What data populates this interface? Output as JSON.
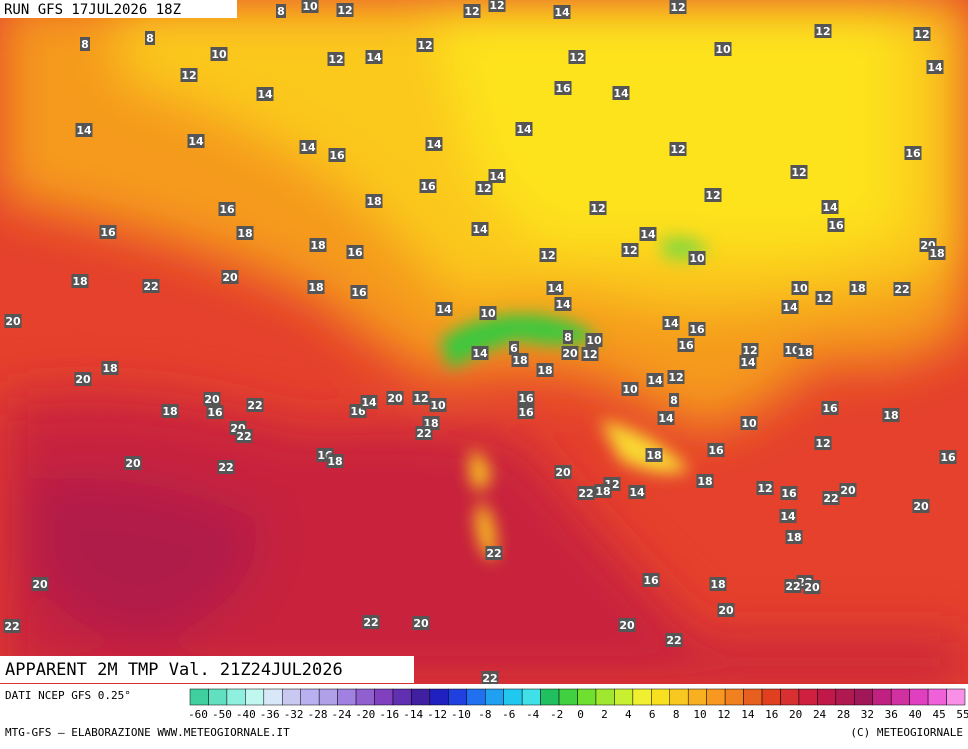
{
  "header": {
    "run": "RUN GFS 17JUL2026 18Z",
    "title": "APPARENT 2M TMP Val. 21Z24JUL2026"
  },
  "legend": {
    "source": "DATI NCEP GFS 0.25°",
    "ticks": [
      -60,
      -50,
      -40,
      -36,
      -32,
      -28,
      -24,
      -20,
      -16,
      -14,
      -12,
      -10,
      -8,
      -6,
      -4,
      -2,
      0,
      2,
      4,
      6,
      8,
      10,
      12,
      14,
      16,
      20,
      24,
      28,
      32,
      36,
      40,
      45,
      55
    ]
  },
  "footer": {
    "left": "MTG-GFS — ELABORAZIONE WWW.METEOGIORNALE.IT",
    "right": "(C) METEOGIORNALE"
  },
  "map_labels": [
    8,
    10,
    12,
    12,
    12,
    14,
    12,
    8,
    8,
    10,
    12,
    14,
    12,
    12,
    10,
    12,
    12,
    14,
    12,
    14,
    16,
    14,
    14,
    14,
    14,
    16,
    14,
    14,
    12,
    16,
    14,
    12,
    16,
    12,
    12,
    18,
    16,
    12,
    14,
    16,
    16,
    18,
    14,
    14,
    18,
    16,
    12,
    12,
    10,
    20,
    18,
    20,
    18,
    22,
    18,
    16,
    14,
    18,
    22,
    10,
    12,
    14,
    14,
    10,
    14,
    20,
    14,
    16,
    8,
    10,
    16,
    12,
    14,
    10,
    18,
    14,
    6,
    18,
    20,
    12,
    18,
    20,
    18,
    14,
    12,
    10,
    8,
    20,
    22,
    18,
    16,
    16,
    14,
    20,
    12,
    10,
    16,
    16,
    16,
    18,
    14,
    20,
    22,
    18,
    22,
    10,
    12,
    16,
    18,
    16,
    16,
    18,
    20,
    22,
    20,
    18,
    12,
    18,
    22,
    14,
    12,
    16,
    20,
    22,
    20,
    14,
    18,
    22,
    16,
    18,
    22,
    22,
    20,
    20,
    20,
    22,
    22,
    20,
    20,
    22,
    22
  ]
}
